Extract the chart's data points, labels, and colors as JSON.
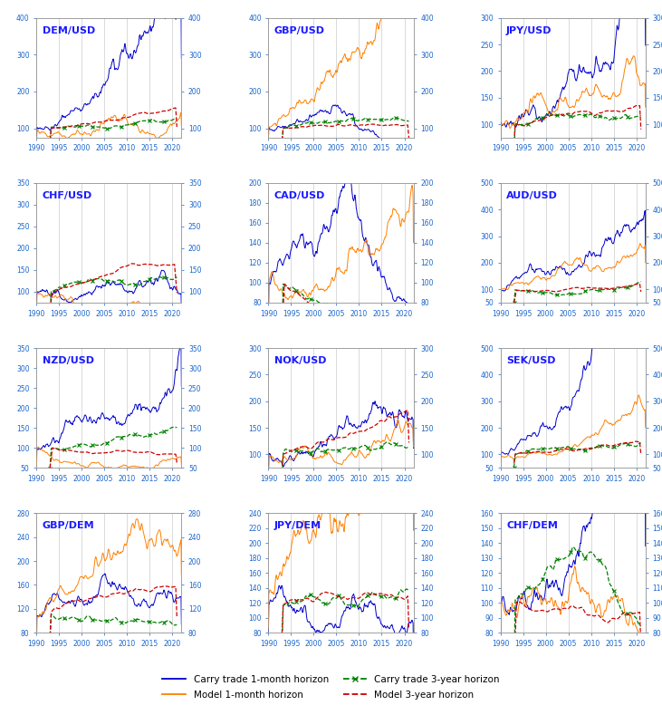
{
  "titles": [
    "DEM/USD",
    "GBP/USD",
    "JPY/USD",
    "CHF/USD",
    "CAD/USD",
    "AUD/USD",
    "NZD/USD",
    "NOK/USD",
    "SEK/USD",
    "GBP/DEM",
    "JPY/DEM",
    "CHF/DEM"
  ],
  "colors": {
    "carry_1m": "#0000CC",
    "model_1m": "#FF8000",
    "carry_3y": "#008000",
    "model_3y": "#CC0000"
  },
  "legend_labels": [
    "Carry trade 1-month horizon",
    "Model 1-month horizon",
    "Carry trade 3-year horizon",
    "Model 3-year horizon"
  ],
  "tick_years": [
    1990,
    1995,
    2000,
    2005,
    2010,
    2015,
    2020
  ],
  "ylims": {
    "DEM/USD": [
      75,
      400
    ],
    "GBP/USD": [
      75,
      400
    ],
    "JPY/USD": [
      75,
      300
    ],
    "CHF/USD": [
      75,
      350
    ],
    "CAD/USD": [
      80,
      200
    ],
    "AUD/USD": [
      50,
      500
    ],
    "NZD/USD": [
      50,
      350
    ],
    "NOK/USD": [
      75,
      300
    ],
    "SEK/USD": [
      50,
      500
    ],
    "GBP/DEM": [
      80,
      280
    ],
    "JPY/DEM": [
      80,
      240
    ],
    "CHF/DEM": [
      80,
      160
    ]
  },
  "yticks": {
    "DEM/USD": [
      100,
      200,
      300,
      400
    ],
    "GBP/USD": [
      100,
      200,
      300,
      400
    ],
    "JPY/USD": [
      100,
      150,
      200,
      250,
      300
    ],
    "CHF/USD": [
      100,
      150,
      200,
      250,
      300,
      350
    ],
    "CAD/USD": [
      80,
      100,
      120,
      140,
      160,
      180,
      200
    ],
    "AUD/USD": [
      50,
      100,
      200,
      300,
      400,
      500
    ],
    "NZD/USD": [
      50,
      100,
      150,
      200,
      250,
      300,
      350
    ],
    "NOK/USD": [
      100,
      150,
      200,
      250,
      300
    ],
    "SEK/USD": [
      50,
      100,
      200,
      300,
      400,
      500
    ],
    "GBP/DEM": [
      80,
      120,
      160,
      200,
      240,
      280
    ],
    "JPY/DEM": [
      80,
      100,
      120,
      140,
      160,
      180,
      200,
      220,
      240
    ],
    "CHF/DEM": [
      80,
      90,
      100,
      110,
      120,
      130,
      140,
      150,
      160
    ]
  }
}
